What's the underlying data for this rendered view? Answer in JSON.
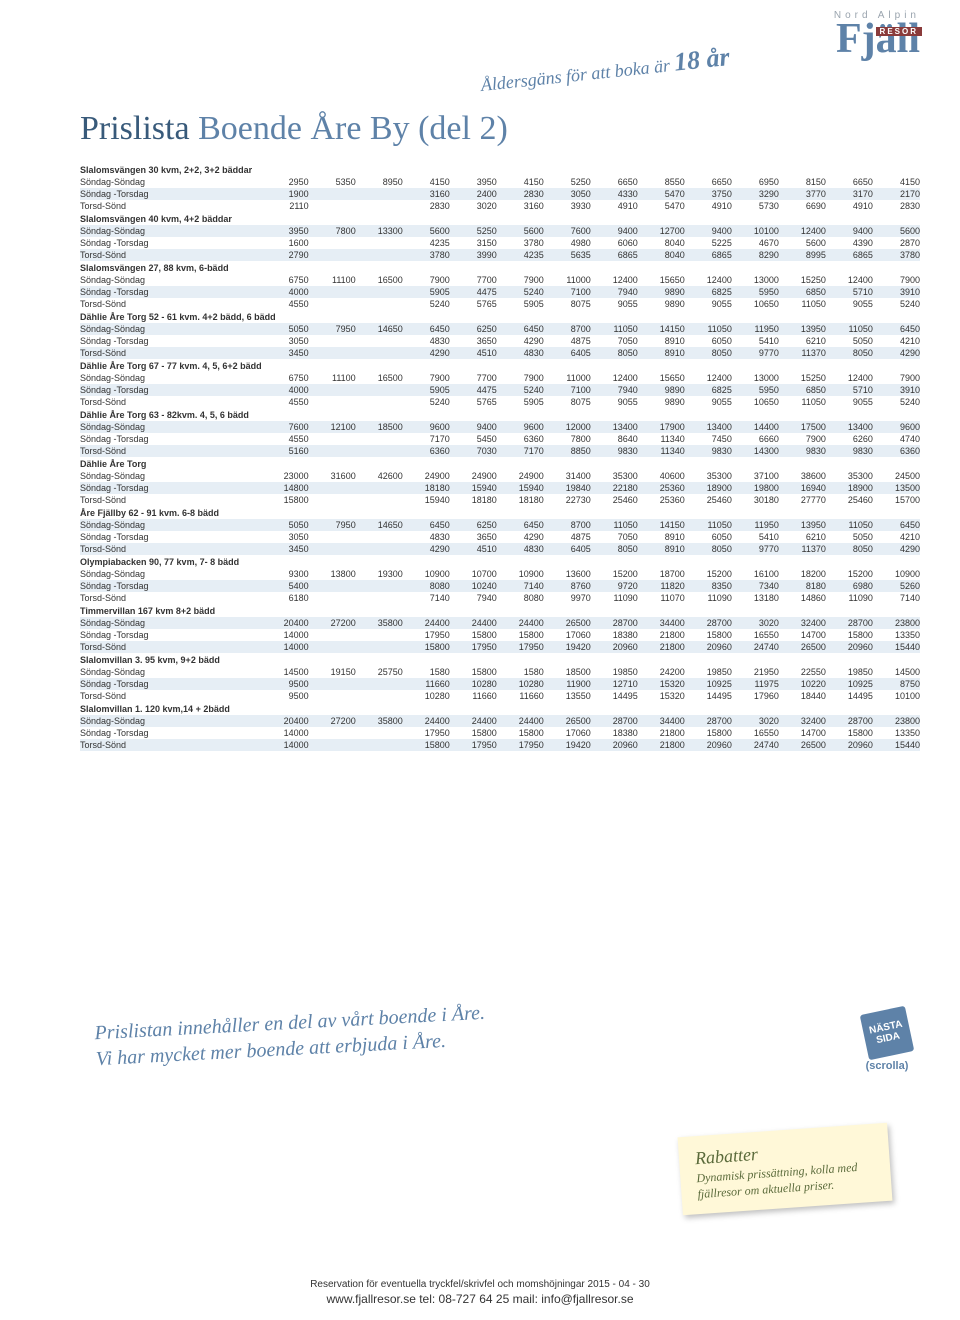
{
  "banner": "Åldersgäns för att boka är",
  "banner_age": "18 år",
  "logo_top": "Nord Alpin",
  "logo_main": "Fjäll",
  "logo_box": "RESOR",
  "title_a": "Prislista ",
  "title_b": "Boende Åre By (del 2)",
  "note1": "Prislistan innehåller en del av vårt boende i Åre.",
  "note2": "Vi har mycket mer boende att erbjuda i Åre.",
  "nasta": "NÄSTA SIDA",
  "scrolla": "(scrolla)",
  "sticky_title": "Rabatter",
  "sticky_body": "Dynamisk prissättning, kolla med fjällresor om aktuella priser.",
  "footer1": "Reservation för eventuella tryckfel/skrivfel och momshöjningar 2015 - 04 - 30",
  "footer2": "www.fjallresor.se tel: 08-727 64 25 mail: info@fjallresor.se",
  "numCols": 15,
  "sections": [
    {
      "title": "Slalomsvängen 30 kvm, 2+2, 3+2 bäddar",
      "rows": [
        {
          "l": "Söndag-Söndag",
          "v": [
            2950,
            5350,
            8950,
            4150,
            3950,
            4150,
            5250,
            6650,
            8550,
            6650,
            6950,
            8150,
            6650,
            4150
          ]
        },
        {
          "l": "Söndag -Torsdag",
          "v": [
            1900,
            "",
            "",
            3160,
            2400,
            2830,
            3050,
            4330,
            5470,
            3750,
            3290,
            3770,
            3170,
            2170
          ]
        },
        {
          "l": "Torsd-Sönd",
          "v": [
            2110,
            "",
            "",
            2830,
            3020,
            3160,
            3930,
            4910,
            5470,
            4910,
            5730,
            6690,
            4910,
            2830
          ]
        }
      ]
    },
    {
      "title": "Slalomsvängen 40 kvm, 4+2 bäddar",
      "rows": [
        {
          "l": "Söndag-Söndag",
          "v": [
            3950,
            7800,
            13300,
            5600,
            5250,
            5600,
            7600,
            9400,
            12700,
            9400,
            10100,
            12400,
            9400,
            5600
          ]
        },
        {
          "l": "Söndag -Torsdag",
          "v": [
            1600,
            "",
            "",
            4235,
            3150,
            3780,
            4980,
            6060,
            8040,
            5225,
            4670,
            5600,
            4390,
            2870
          ]
        },
        {
          "l": "Torsd-Sönd",
          "v": [
            2790,
            "",
            "",
            3780,
            3990,
            4235,
            5635,
            6865,
            8040,
            6865,
            8290,
            8995,
            6865,
            3780
          ]
        }
      ]
    },
    {
      "title": "Slalomsvängen 27, 88 kvm, 6-bädd",
      "rows": [
        {
          "l": "Söndag-Söndag",
          "v": [
            6750,
            11100,
            16500,
            7900,
            7700,
            7900,
            11000,
            12400,
            15650,
            12400,
            13000,
            15250,
            12400,
            7900
          ]
        },
        {
          "l": "Söndag -Torsdag",
          "v": [
            4000,
            "",
            "",
            5905,
            4475,
            5240,
            7100,
            7940,
            9890,
            6825,
            5950,
            6850,
            5710,
            3910
          ]
        },
        {
          "l": "Torsd-Sönd",
          "v": [
            4550,
            "",
            "",
            5240,
            5765,
            5905,
            8075,
            9055,
            9890,
            9055,
            10650,
            11050,
            9055,
            5240
          ]
        }
      ]
    },
    {
      "title": "Dählie Åre Torg 52 - 61 kvm. 4+2 bädd, 6 bädd",
      "rows": [
        {
          "l": "Söndag-Söndag",
          "v": [
            5050,
            7950,
            14650,
            6450,
            6250,
            6450,
            8700,
            11050,
            14150,
            11050,
            11950,
            13950,
            11050,
            6450
          ]
        },
        {
          "l": "Söndag -Torsdag",
          "v": [
            3050,
            "",
            "",
            4830,
            3650,
            4290,
            4875,
            7050,
            8910,
            6050,
            5410,
            6210,
            5050,
            4210
          ]
        },
        {
          "l": "Torsd-Sönd",
          "v": [
            3450,
            "",
            "",
            4290,
            4510,
            4830,
            6405,
            8050,
            8910,
            8050,
            9770,
            11370,
            8050,
            4290
          ]
        }
      ]
    },
    {
      "title": "Dählie Åre Torg 67 - 77 kvm. 4, 5, 6+2 bädd",
      "rows": [
        {
          "l": "Söndag-Söndag",
          "v": [
            6750,
            11100,
            16500,
            7900,
            7700,
            7900,
            11000,
            12400,
            15650,
            12400,
            13000,
            15250,
            12400,
            7900
          ]
        },
        {
          "l": "Söndag -Torsdag",
          "v": [
            4000,
            "",
            "",
            5905,
            4475,
            5240,
            7100,
            7940,
            9890,
            6825,
            5950,
            6850,
            5710,
            3910
          ]
        },
        {
          "l": "Torsd-Sönd",
          "v": [
            4550,
            "",
            "",
            5240,
            5765,
            5905,
            8075,
            9055,
            9890,
            9055,
            10650,
            11050,
            9055,
            5240
          ]
        }
      ]
    },
    {
      "title": "Dählie Åre Torg 63 - 82kvm. 4, 5, 6 bädd",
      "rows": [
        {
          "l": "Söndag-Söndag",
          "v": [
            7600,
            12100,
            18500,
            9600,
            9400,
            9600,
            12000,
            13400,
            17900,
            13400,
            14400,
            17500,
            13400,
            9600
          ]
        },
        {
          "l": "Söndag -Torsdag",
          "v": [
            4550,
            "",
            "",
            7170,
            5450,
            6360,
            7800,
            8640,
            11340,
            7450,
            6660,
            7900,
            6260,
            4740
          ]
        },
        {
          "l": "Torsd-Sönd",
          "v": [
            5160,
            "",
            "",
            6360,
            7030,
            7170,
            8850,
            9830,
            11340,
            9830,
            14300,
            9830,
            9830,
            6360
          ]
        }
      ]
    },
    {
      "title": "Dählie Åre Torg",
      "rows": [
        {
          "l": "Söndag-Söndag",
          "v": [
            23000,
            31600,
            42600,
            24900,
            24900,
            24900,
            31400,
            35300,
            40600,
            35300,
            37100,
            38600,
            35300,
            24500
          ]
        },
        {
          "l": "Söndag -Torsdag",
          "v": [
            14800,
            "",
            "",
            18180,
            15940,
            15940,
            19840,
            22180,
            25360,
            18900,
            19800,
            16940,
            18900,
            13500
          ]
        },
        {
          "l": "Torsd-Sönd",
          "v": [
            15800,
            "",
            "",
            15940,
            18180,
            18180,
            22730,
            25460,
            25360,
            25460,
            30180,
            27770,
            25460,
            15700
          ]
        }
      ]
    },
    {
      "title": "Åre Fjällby 62 - 91 kvm. 6-8 bädd",
      "rows": [
        {
          "l": "Söndag-Söndag",
          "v": [
            5050,
            7950,
            14650,
            6450,
            6250,
            6450,
            8700,
            11050,
            14150,
            11050,
            11950,
            13950,
            11050,
            6450
          ]
        },
        {
          "l": "Söndag -Torsdag",
          "v": [
            3050,
            "",
            "",
            4830,
            3650,
            4290,
            4875,
            7050,
            8910,
            6050,
            5410,
            6210,
            5050,
            4210
          ]
        },
        {
          "l": "Torsd-Sönd",
          "v": [
            3450,
            "",
            "",
            4290,
            4510,
            4830,
            6405,
            8050,
            8910,
            8050,
            9770,
            11370,
            8050,
            4290
          ]
        }
      ]
    },
    {
      "title": "Olympiabacken 90, 77 kvm, 7- 8 bädd",
      "rows": [
        {
          "l": "Söndag-Söndag",
          "v": [
            9300,
            13800,
            19300,
            10900,
            10700,
            10900,
            13600,
            15200,
            18700,
            15200,
            16100,
            18200,
            15200,
            10900
          ]
        },
        {
          "l": "Söndag -Torsdag",
          "v": [
            5400,
            "",
            "",
            8080,
            10240,
            7140,
            8760,
            9720,
            11820,
            8350,
            7340,
            8180,
            6980,
            5260
          ]
        },
        {
          "l": "Torsd-Sönd",
          "v": [
            6180,
            "",
            "",
            7140,
            7940,
            8080,
            9970,
            11090,
            11070,
            11090,
            13180,
            14860,
            11090,
            7140
          ]
        }
      ]
    },
    {
      "title": "Timmervillan 167 kvm 8+2 bädd",
      "rows": [
        {
          "l": "Söndag-Söndag",
          "v": [
            20400,
            27200,
            35800,
            24400,
            24400,
            24400,
            26500,
            28700,
            34400,
            28700,
            3020,
            32400,
            28700,
            23800
          ]
        },
        {
          "l": "Söndag -Torsdag",
          "v": [
            14000,
            "",
            "",
            17950,
            15800,
            15800,
            17060,
            18380,
            21800,
            15800,
            16550,
            14700,
            15800,
            13350
          ]
        },
        {
          "l": "Torsd-Sönd",
          "v": [
            14000,
            "",
            "",
            15800,
            17950,
            17950,
            19420,
            20960,
            21800,
            20960,
            24740,
            26500,
            20960,
            15440
          ]
        }
      ]
    },
    {
      "title": "Slalomvillan 3. 95 kvm, 9+2 bädd",
      "rows": [
        {
          "l": "Söndag-Söndag",
          "v": [
            14500,
            19150,
            25750,
            1580,
            15800,
            1580,
            18500,
            19850,
            24200,
            19850,
            21950,
            22550,
            19850,
            14500
          ]
        },
        {
          "l": "Söndag -Torsdag",
          "v": [
            9500,
            "",
            "",
            11660,
            10280,
            10280,
            11900,
            12710,
            15320,
            10925,
            11975,
            10220,
            10925,
            8750
          ]
        },
        {
          "l": "Torsd-Sönd",
          "v": [
            9500,
            "",
            "",
            10280,
            11660,
            11660,
            13550,
            14495,
            15320,
            14495,
            17960,
            18440,
            14495,
            10100
          ]
        }
      ]
    },
    {
      "title": "Slalomvillan 1. 120 kvm,14 + 2bädd",
      "rows": [
        {
          "l": "Söndag-Söndag",
          "v": [
            20400,
            27200,
            35800,
            24400,
            24400,
            24400,
            26500,
            28700,
            34400,
            28700,
            3020,
            32400,
            28700,
            23800
          ]
        },
        {
          "l": "Söndag -Torsdag",
          "v": [
            14000,
            "",
            "",
            17950,
            15800,
            15800,
            17060,
            18380,
            21800,
            15800,
            16550,
            14700,
            15800,
            13350
          ]
        },
        {
          "l": "Torsd-Sönd",
          "v": [
            14000,
            "",
            "",
            15800,
            17950,
            17950,
            19420,
            20960,
            21800,
            20960,
            24740,
            26500,
            20960,
            15440
          ]
        }
      ]
    }
  ]
}
